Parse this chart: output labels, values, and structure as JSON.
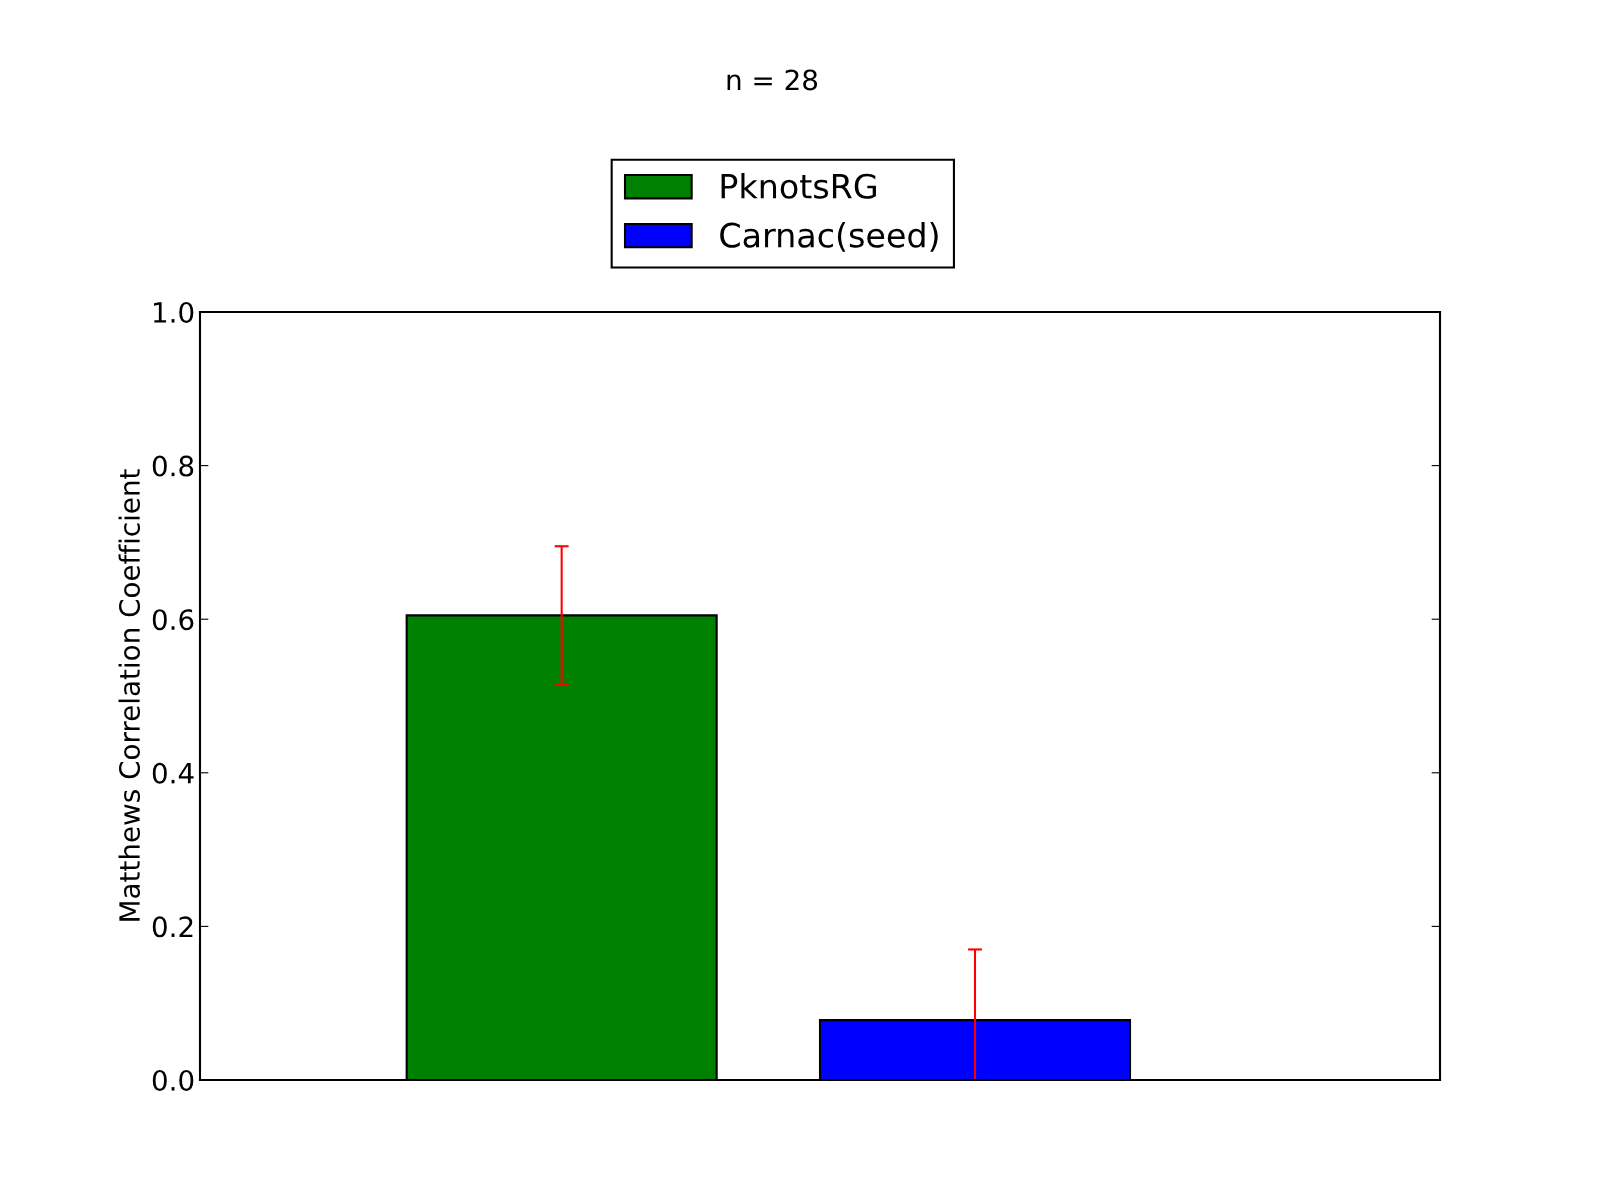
{
  "chart_data": {
    "type": "bar",
    "title": "n = 28",
    "ylabel": "Matthews Correlation Coefficient",
    "categories": [
      null,
      null
    ],
    "series": [
      {
        "name": "PknotsRG",
        "color": "#008000",
        "values": [
          0.605,
          null
        ],
        "errors": [
          [
            0.515,
            0.695
          ],
          null
        ]
      },
      {
        "name": "Carnac(seed)",
        "color": "#0000ff",
        "values": [
          null,
          0.078
        ],
        "errors": [
          null,
          [
            0.0,
            0.17
          ]
        ]
      }
    ],
    "ylim": [
      0.0,
      1.0
    ],
    "yticks": [
      {
        "value": 0.0,
        "label": "0.0"
      },
      {
        "value": 0.2,
        "label": "0.2"
      },
      {
        "value": 0.4,
        "label": "0.4"
      },
      {
        "value": 0.6,
        "label": "0.6"
      },
      {
        "value": 0.8,
        "label": "0.8"
      },
      {
        "value": 1.0,
        "label": "1.0"
      }
    ],
    "grid": false,
    "legend": "top"
  }
}
